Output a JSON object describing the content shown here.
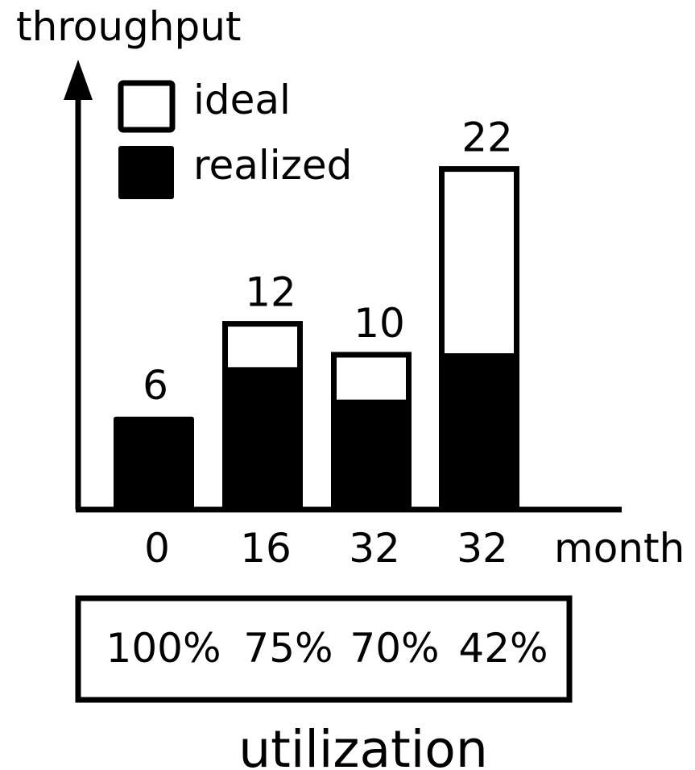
{
  "chart_data": {
    "type": "bar",
    "ylabel": "throughput",
    "xlabel": "month",
    "categories": [
      "0",
      "16",
      "32",
      "32"
    ],
    "series": [
      {
        "name": "ideal",
        "values": [
          6,
          12,
          10,
          22
        ]
      },
      {
        "name": "realized",
        "values": [
          6,
          9.2,
          7.1,
          10.1
        ]
      }
    ],
    "value_labels": [
      "6",
      "12",
      "10",
      "22"
    ],
    "ylim": [
      0,
      24
    ],
    "grid": false,
    "legend": "top-left",
    "utilization": {
      "title": "utilization",
      "values": [
        "100%",
        "75%",
        "70%",
        "42%"
      ]
    },
    "colors": {
      "ideal": "#ffffff",
      "realized": "#000000",
      "stroke": "#000000"
    }
  }
}
